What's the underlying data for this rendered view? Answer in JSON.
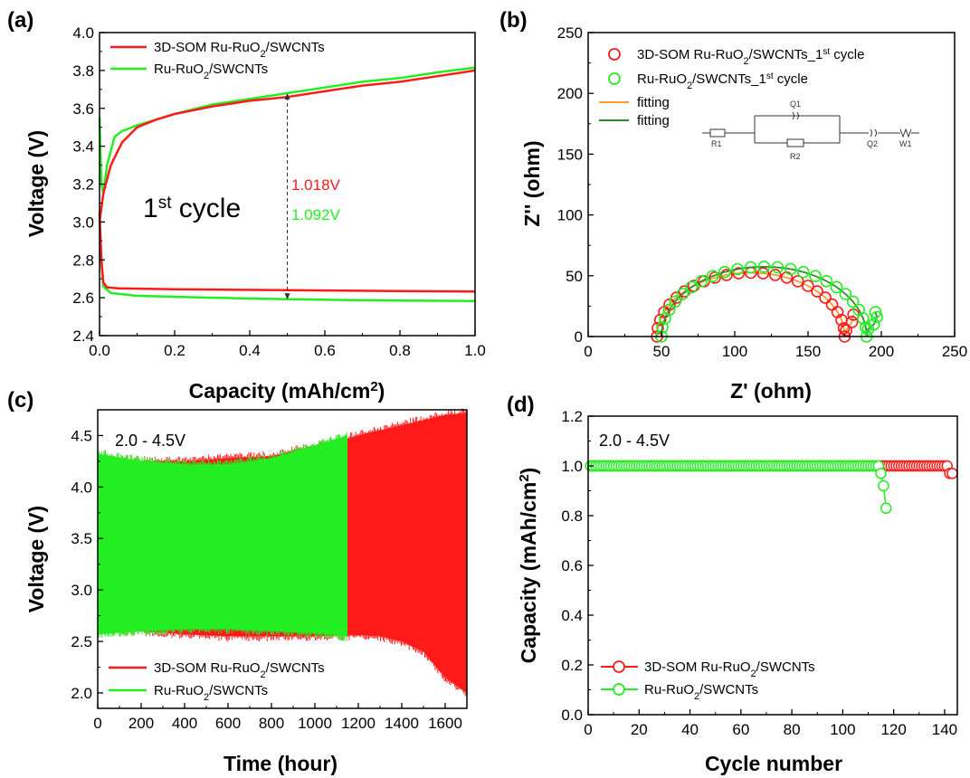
{
  "colors": {
    "red": "#ff1a1a",
    "green": "#22ee22",
    "orange": "#ff9a2a",
    "darkgreen": "#2f8a2f"
  },
  "chart_data": [
    {
      "panel": "(a)",
      "type": "line",
      "xlabel": "Capacity (mAh/cm²)",
      "ylabel": "Voltage (V)",
      "xlim": [
        0.0,
        1.0
      ],
      "ylim": [
        2.4,
        4.0
      ],
      "xticks": [
        "0.0",
        "0.2",
        "0.4",
        "0.6",
        "0.8",
        "1.0"
      ],
      "yticks": [
        "2.4",
        "2.6",
        "2.8",
        "3.0",
        "3.2",
        "3.4",
        "3.6",
        "3.8",
        "4.0"
      ],
      "legend": "top-left",
      "annotation_main": "1st cycle",
      "annotation_red": "1.018V",
      "annotation_green": "1.092V",
      "arrow_x": 0.5,
      "series": [
        {
          "name": "3D-SOM Ru-RuO2/SWCNTs",
          "color": "#ff1a1a",
          "charge": [
            [
              0.0,
              3.0
            ],
            [
              0.01,
              3.15
            ],
            [
              0.03,
              3.3
            ],
            [
              0.06,
              3.42
            ],
            [
              0.1,
              3.5
            ],
            [
              0.15,
              3.54
            ],
            [
              0.2,
              3.57
            ],
            [
              0.3,
              3.61
            ],
            [
              0.4,
              3.64
            ],
            [
              0.5,
              3.66
            ],
            [
              0.6,
              3.69
            ],
            [
              0.7,
              3.72
            ],
            [
              0.8,
              3.74
            ],
            [
              0.9,
              3.77
            ],
            [
              1.0,
              3.8
            ]
          ],
          "discharge": [
            [
              0.0,
              3.05
            ],
            [
              0.005,
              2.8
            ],
            [
              0.01,
              2.68
            ],
            [
              0.02,
              2.655
            ],
            [
              0.05,
              2.65
            ],
            [
              0.2,
              2.645
            ],
            [
              0.5,
              2.64
            ],
            [
              0.8,
              2.635
            ],
            [
              1.0,
              2.633
            ]
          ]
        },
        {
          "name": "Ru-RuO2/SWCNTs",
          "color": "#22ee22",
          "charge": [
            [
              0.0,
              3.55
            ],
            [
              0.005,
              3.2
            ],
            [
              0.01,
              3.15
            ],
            [
              0.02,
              3.3
            ],
            [
              0.04,
              3.45
            ],
            [
              0.06,
              3.48
            ],
            [
              0.1,
              3.51
            ],
            [
              0.2,
              3.57
            ],
            [
              0.3,
              3.62
            ],
            [
              0.4,
              3.65
            ],
            [
              0.5,
              3.68
            ],
            [
              0.6,
              3.71
            ],
            [
              0.7,
              3.74
            ],
            [
              0.8,
              3.76
            ],
            [
              0.9,
              3.79
            ],
            [
              1.0,
              3.815
            ]
          ],
          "discharge": [
            [
              0.0,
              3.05
            ],
            [
              0.004,
              2.8
            ],
            [
              0.01,
              2.66
            ],
            [
              0.03,
              2.625
            ],
            [
              0.1,
              2.61
            ],
            [
              0.3,
              2.6
            ],
            [
              0.5,
              2.592
            ],
            [
              0.8,
              2.585
            ],
            [
              1.0,
              2.583
            ]
          ]
        }
      ]
    },
    {
      "panel": "(b)",
      "type": "scatter",
      "xlabel": "Z' (ohm)",
      "ylabel": "Z'' (ohm)",
      "xlim": [
        0,
        250
      ],
      "ylim": [
        0,
        250
      ],
      "xticks": [
        "0",
        "50",
        "100",
        "150",
        "200",
        "250"
      ],
      "yticks": [
        "0",
        "50",
        "100",
        "150",
        "200",
        "250"
      ],
      "legend": "top-left",
      "circuit_labels": [
        "R1",
        "Q1",
        "R2",
        "Q2",
        "W1"
      ],
      "series": [
        {
          "name": "3D-SOM Ru-RuO2/SWCNTs_1st cycle",
          "color": "#ff1a1a",
          "Rs": 47,
          "Rct": 128,
          "tail": [
            [
              176,
              5
            ],
            [
              180,
              12
            ],
            [
              181,
              18
            ]
          ]
        },
        {
          "name": "Ru-RuO2/SWCNTs_1st cycle",
          "color": "#22ee22",
          "Rs": 50,
          "Rct": 140,
          "tail": [
            [
              191,
              6
            ],
            [
              195,
              10
            ],
            [
              197,
              16
            ],
            [
              196,
              20
            ]
          ]
        }
      ],
      "fit_series": [
        {
          "name": "fitting",
          "color": "#ff9a2a"
        },
        {
          "name": "fitting",
          "color": "#2f8a2f"
        }
      ]
    },
    {
      "panel": "(c)",
      "type": "area",
      "xlabel": "Time (hour)",
      "ylabel": "Voltage (V)",
      "xlim": [
        0,
        1700
      ],
      "ylim": [
        1.85,
        4.75
      ],
      "xticks": [
        "0",
        "200",
        "400",
        "600",
        "800",
        "1000",
        "1200",
        "1400",
        "1600"
      ],
      "yticks": [
        "2.0",
        "2.5",
        "3.0",
        "3.5",
        "4.0",
        "4.5"
      ],
      "annotation": "2.0 - 4.5V",
      "legend": "bottom-left",
      "series": [
        {
          "name": "3D-SOM Ru-RuO2/SWCNTs",
          "color": "#ff1a1a",
          "end": 1700,
          "envelope": [
            [
              0,
              4.3,
              2.6
            ],
            [
              200,
              4.25,
              2.6
            ],
            [
              400,
              4.25,
              2.57
            ],
            [
              600,
              4.28,
              2.55
            ],
            [
              800,
              4.3,
              2.55
            ],
            [
              1000,
              4.4,
              2.55
            ],
            [
              1150,
              4.47,
              2.56
            ],
            [
              1200,
              4.5,
              2.56
            ],
            [
              1300,
              4.55,
              2.55
            ],
            [
              1400,
              4.6,
              2.5
            ],
            [
              1500,
              4.65,
              2.4
            ],
            [
              1600,
              4.7,
              2.15
            ],
            [
              1700,
              4.72,
              2.0
            ]
          ]
        },
        {
          "name": "Ru-RuO2/SWCNTs",
          "color": "#22ee22",
          "end": 1150,
          "envelope": [
            [
              0,
              4.32,
              2.57
            ],
            [
              200,
              4.25,
              2.6
            ],
            [
              400,
              4.22,
              2.62
            ],
            [
              600,
              4.22,
              2.62
            ],
            [
              800,
              4.28,
              2.6
            ],
            [
              1000,
              4.4,
              2.58
            ],
            [
              1150,
              4.5,
              2.55
            ]
          ]
        }
      ]
    },
    {
      "panel": "(d)",
      "type": "scatter",
      "xlabel": "Cycle number",
      "ylabel": "Capacity (mAh/cm²)",
      "xlim": [
        0,
        145
      ],
      "ylim": [
        0,
        1.2
      ],
      "xticks": [
        "0",
        "20",
        "40",
        "60",
        "80",
        "100",
        "120",
        "140"
      ],
      "yticks": [
        "0.0",
        "0.2",
        "0.4",
        "0.6",
        "0.8",
        "1.0",
        "1.2"
      ],
      "annotation": "2.0 - 4.5V",
      "legend": "bottom-left",
      "series": [
        {
          "name": "3D-SOM Ru-RuO2/SWCNTs",
          "color": "#ff1a1a",
          "cycles": 143,
          "tail": [
            [
              141,
              1.0
            ],
            [
              142,
              0.97
            ],
            [
              143,
              0.97
            ]
          ]
        },
        {
          "name": "Ru-RuO2/SWCNTs",
          "color": "#22ee22",
          "cycles": 117,
          "tail": [
            [
              114,
              1.0
            ],
            [
              115,
              0.97
            ],
            [
              116,
              0.92
            ],
            [
              117,
              0.83
            ]
          ]
        }
      ]
    }
  ]
}
